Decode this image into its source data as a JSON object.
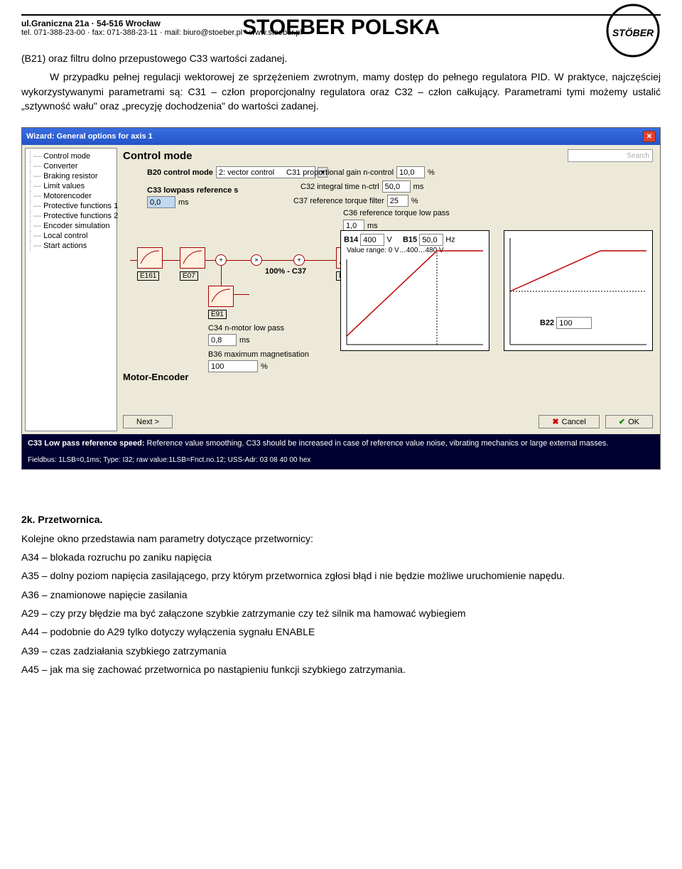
{
  "header": {
    "addr1": "ul.Graniczna 21a · 54-516 Wrocław",
    "addr2": "tel. 071-388-23-00 · fax: 071-388-23-11 · mail: biuro@stoeber.pl · www.stoeber.pl",
    "company": "STOEBER POLSKA",
    "logo_text": "STÖBER"
  },
  "para1": "(B21) oraz filtru dolno przepustowego C33 wartości zadanej.",
  "para2": "W przypadku pełnej regulacji wektorowej ze sprzężeniem zwrotnym, mamy dostęp do pełnego regulatora PID. W praktyce, najczęściej wykorzystywanymi parametrami są: C31 – człon proporcjonalny regulatora oraz C32 – człon całkujący. Parametrami tymi możemy ustalić „sztywność wału\" oraz „precyzję dochodzenia\" do wartości zadanej.",
  "wizard": {
    "title": "Wizard: General options for axis 1",
    "sidebar": [
      "Control mode",
      "Converter",
      "Braking resistor",
      "Limit values",
      "Motorencoder",
      "Protective functions 1",
      "Protective functions 2",
      "Encoder simulation",
      "Local control",
      "Start actions"
    ],
    "panel_title": "Control mode",
    "search_placeholder": "Search",
    "b20_label": "B20  control mode",
    "b20_value": "2: vector control",
    "c31_label": "C31  proportional gain n-control",
    "c31_value": "10,0",
    "c31_unit": "%",
    "c32_label": "C32  integral time n-ctrl",
    "c32_value": "50,0",
    "c32_unit": "ms",
    "c37_label": "C37  reference torque filter",
    "c37_value": "25",
    "c37_unit": "%",
    "c36_label": "C36  reference torque low pass",
    "c36_value": "1,0",
    "c36_unit": "ms",
    "c33_label": "C33  lowpass reference s",
    "c33_value": "0,0",
    "c33_unit": "ms",
    "c34_label": "C34  n-motor low pass",
    "c34_value": "0,8",
    "c34_unit": "ms",
    "b36_label": "B36  maximum magnetisation",
    "b36_value": "100",
    "b36_unit": "%",
    "c37_text": "100% - C37",
    "blocks": {
      "e161": "E161",
      "e07": "E07",
      "e91": "E91",
      "e170": "E170"
    },
    "chart1": {
      "b14_label": "B14",
      "b14_value": "400",
      "b14_unit": "V",
      "b15_label": "B15",
      "b15_value": "50,0",
      "b15_unit": "Hz",
      "range": "Value range: 0 V…400…480 V",
      "xlim": [
        0,
        200
      ],
      "ylim": [
        0,
        150
      ],
      "line_color": "#c00000",
      "points": [
        [
          8,
          148
        ],
        [
          135,
          28
        ],
        [
          200,
          28
        ]
      ]
    },
    "chart2": {
      "b22_label": "B22",
      "b22_value": "100",
      "xlim": [
        0,
        200
      ],
      "ylim": [
        0,
        150
      ],
      "line_color": "#c00000",
      "points": [
        [
          8,
          85
        ],
        [
          135,
          28
        ],
        [
          200,
          28
        ]
      ]
    },
    "motor_encoder": "Motor-Encoder",
    "buttons": {
      "next": "Next >",
      "cancel": "Cancel",
      "ok": "OK"
    },
    "help_bold": "C33  Low pass reference speed: ",
    "help_text": "Reference value smoothing. C33 should be increased in case of reference value noise, vibrating mechanics or large external masses.",
    "fieldbus": "Fieldbus: 1LSB=0,1ms; Type: I32; raw value:1LSB=Fnct.no.12; USS-Adr: 03 08 40 00 hex"
  },
  "section_2k": "2k. Przetwornica.",
  "para3": "Kolejne okno przedstawia nam parametry dotyczące przetwornicy:",
  "list": [
    "A34 – blokada rozruchu po zaniku napięcia",
    "A35 – dolny poziom napięcia zasilającego, przy którym przetwornica zgłosi błąd i nie będzie możliwe uruchomienie napędu.",
    "A36 – znamionowe napięcie zasilania",
    "A29 – czy przy błędzie ma być załączone szybkie zatrzymanie czy też silnik ma hamować wybiegiem",
    "A44 – podobnie do A29 tylko dotyczy wyłączenia sygnału ENABLE",
    "A39 – czas zadziałania szybkiego zatrzymania",
    "A45 – jak ma się zachować przetwornica po nastąpieniu funkcji szybkiego zatrzymania."
  ]
}
